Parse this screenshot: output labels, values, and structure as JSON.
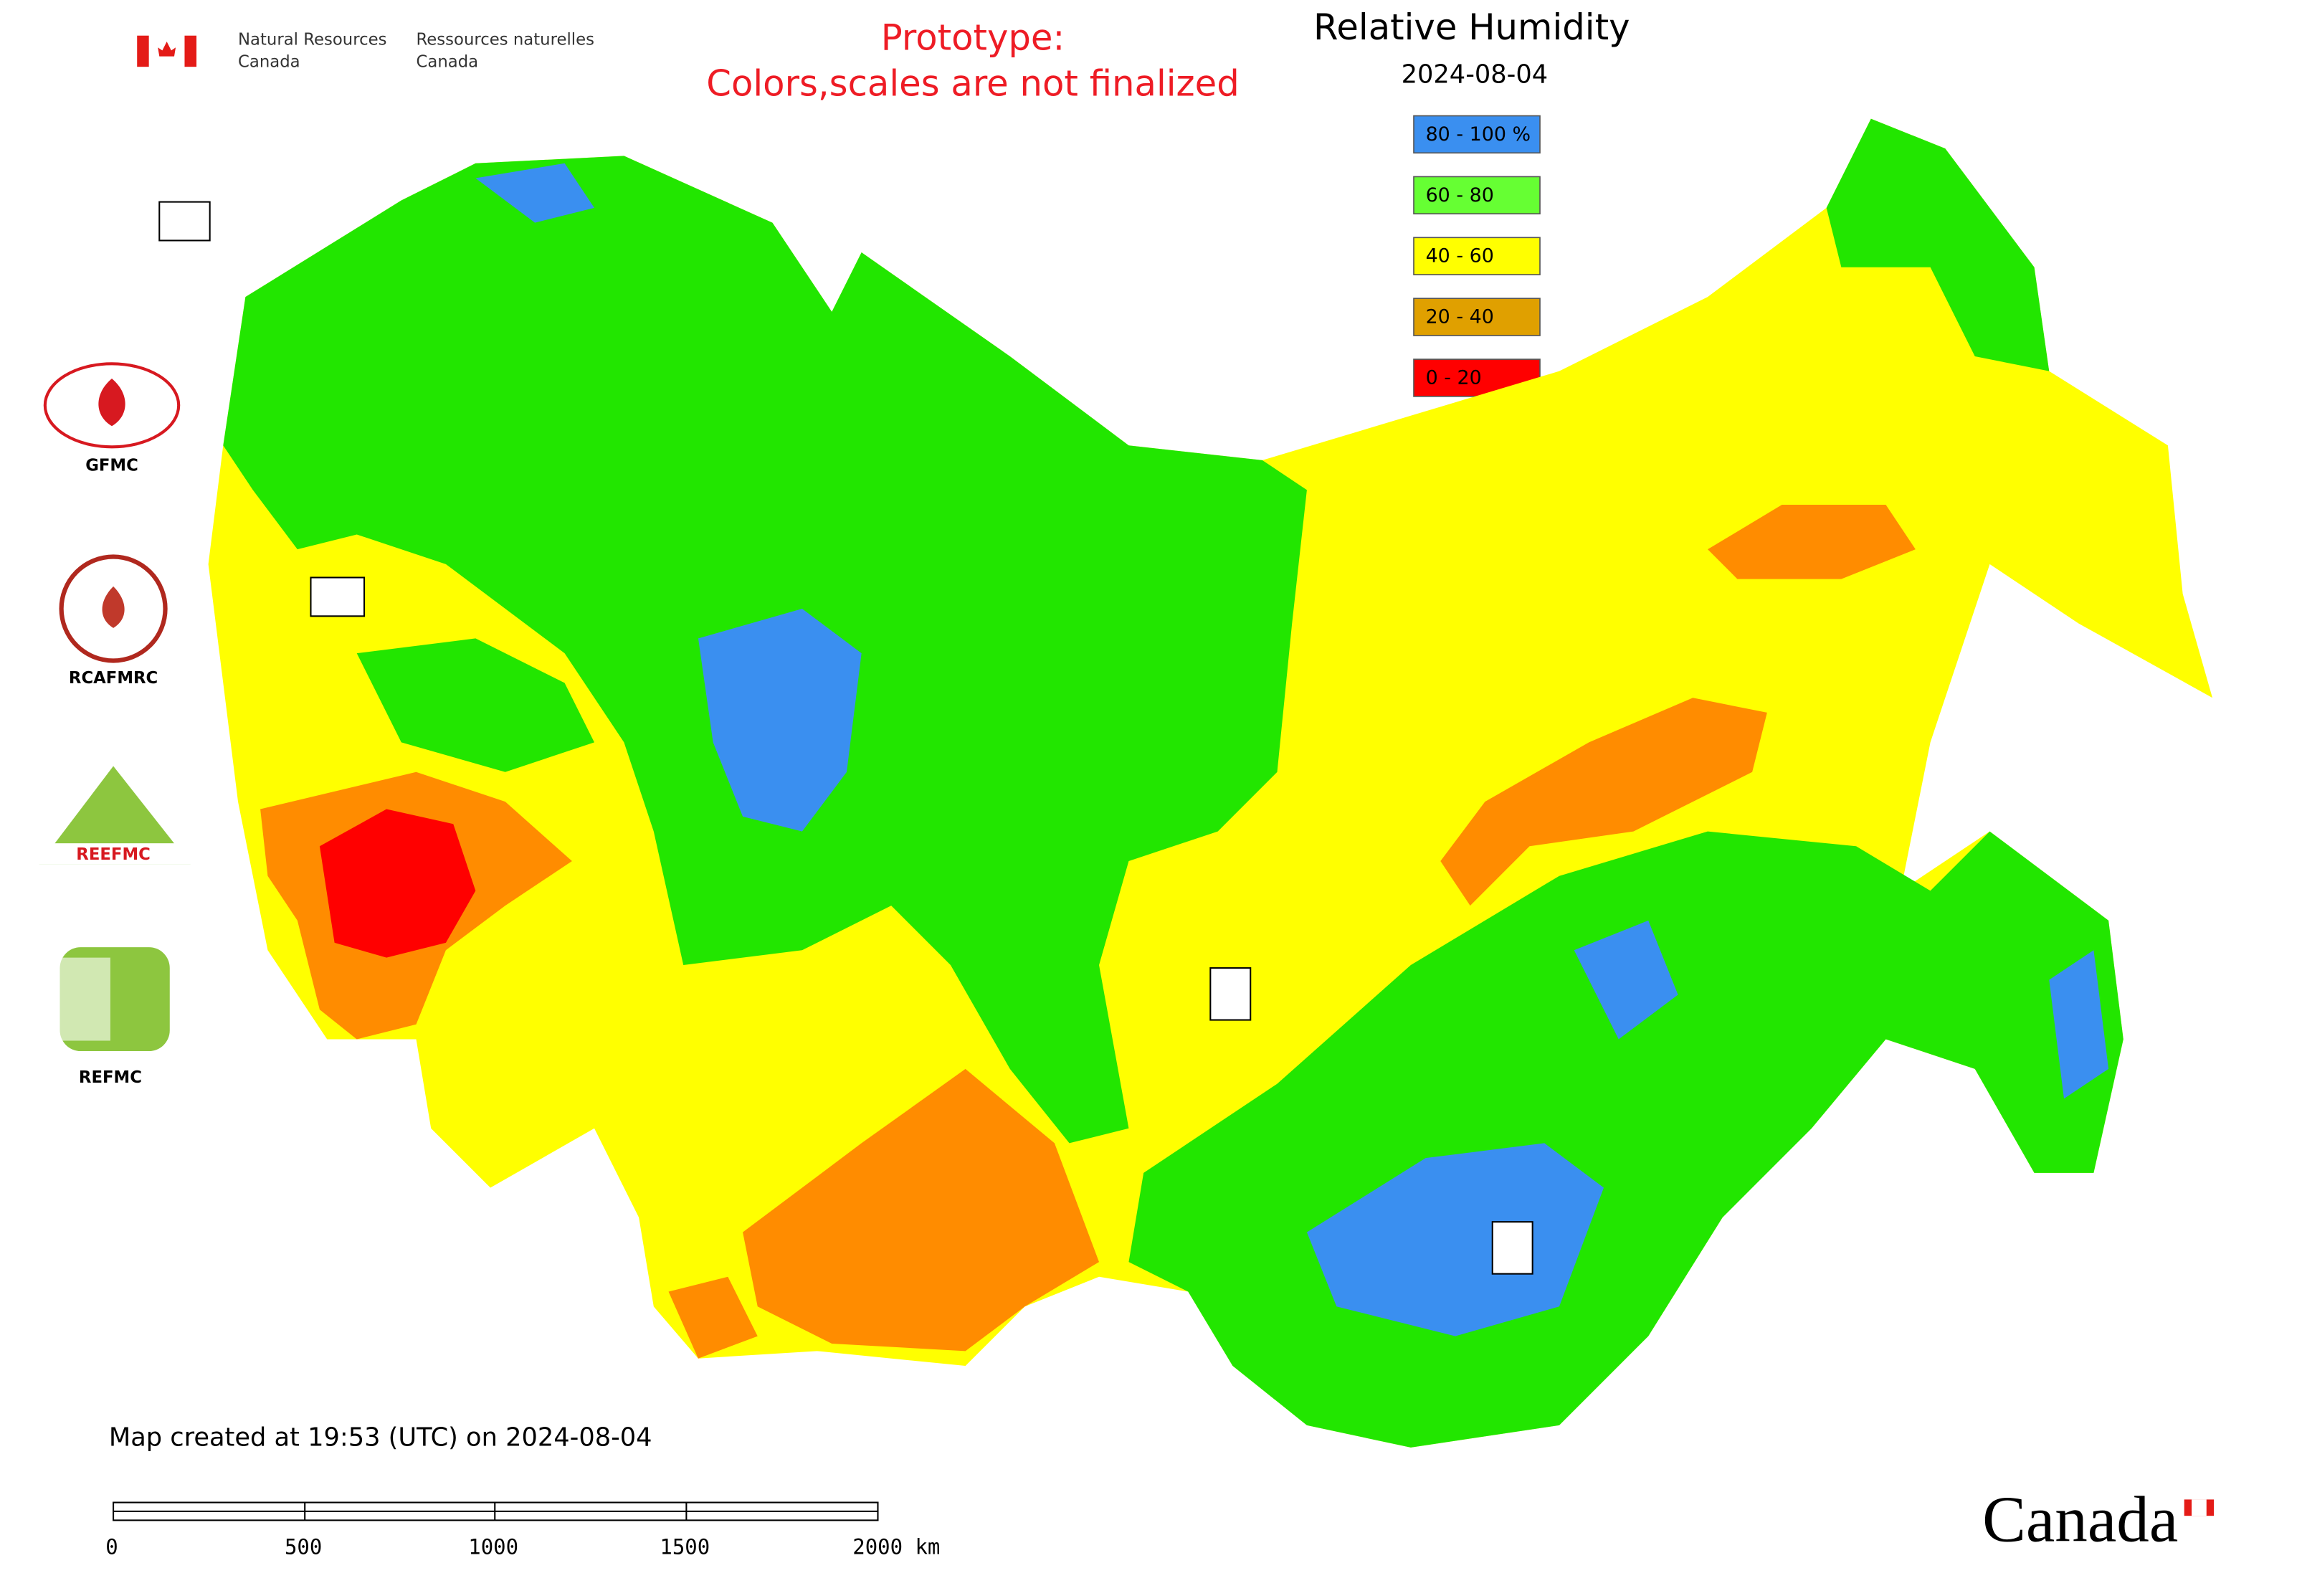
{
  "header": {
    "agency_en_line1": "Natural Resources",
    "agency_en_line2": "Canada",
    "agency_fr_line1": "Ressources naturelles",
    "agency_fr_line2": "Canada"
  },
  "notice": [
    "Prototype:",
    "Colors,scales are not finalized"
  ],
  "title": "Relative Humidity",
  "date": "2024-08-04",
  "legend": [
    {
      "label": "80 - 100 %",
      "color": "#3a8ff0"
    },
    {
      "label": "60 - 80",
      "color": "#66ff33"
    },
    {
      "label": "40 - 60",
      "color": "#ffff00"
    },
    {
      "label": "20 - 40",
      "color": "#e0a000"
    },
    {
      "label": "0 - 20",
      "color": "#ff0000"
    }
  ],
  "partners": [
    "GFMC",
    "RCAFMRC",
    "REEFMC",
    "REFMC"
  ],
  "footer": "Map created at 19:53 (UTC) on 2024-08-04",
  "scale_bar": [
    "0",
    "500",
    "1000",
    "1500",
    "2000 km"
  ],
  "wordmark": "Canada"
}
